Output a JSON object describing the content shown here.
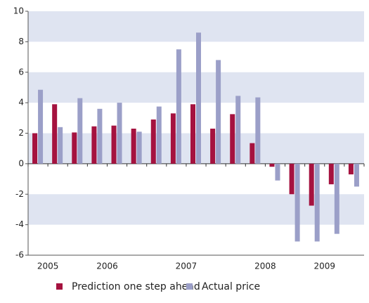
{
  "chart_data": {
    "type": "bar",
    "categories": [
      null,
      "2005",
      null,
      null,
      "2006",
      null,
      null,
      null,
      "2007",
      null,
      null,
      null,
      "2008",
      null,
      null,
      "2009",
      null
    ],
    "series": [
      {
        "name": "Prediction one step ahead",
        "color": "#a5123f",
        "values": [
          2.0,
          3.9,
          2.05,
          2.45,
          2.5,
          2.3,
          2.9,
          3.3,
          3.9,
          2.3,
          3.25,
          1.35,
          -0.2,
          -2.0,
          -2.75,
          -1.35,
          -0.7
        ]
      },
      {
        "name": "Actual price",
        "color": "#9b9fc8",
        "values": [
          4.85,
          2.4,
          4.3,
          3.6,
          4.0,
          2.1,
          3.75,
          7.5,
          8.6,
          6.8,
          4.45,
          4.35,
          -1.1,
          -5.1,
          -5.1,
          -4.6,
          -1.5
        ]
      }
    ],
    "ylim": [
      -6,
      10
    ],
    "yticks": [
      -6,
      -4,
      -2,
      0,
      2,
      4,
      6,
      8,
      10
    ],
    "band_color": "#dfe4f1",
    "legend": "bottom"
  }
}
